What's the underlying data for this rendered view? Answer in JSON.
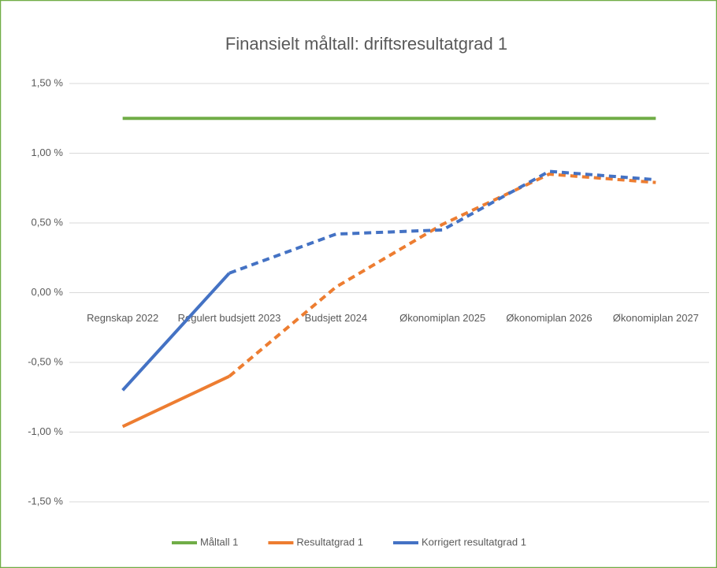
{
  "chart_data": {
    "type": "line",
    "title": "Finansielt måltall: driftsresultatgrad 1",
    "categories": [
      "Regnskap 2022",
      "Regulert budsjett 2023",
      "Budsjett 2024",
      "Økonomiplan 2025",
      "Økonomiplan 2026",
      "Økonomiplan 2027"
    ],
    "series": [
      {
        "name": "Måltall 1",
        "color": "#70ad47",
        "values": [
          1.25,
          1.25,
          1.25,
          1.25,
          1.25,
          1.25
        ]
      },
      {
        "name": "Resultatgrad 1",
        "color": "#ed7d31",
        "values": [
          -0.96,
          -0.6,
          0.04,
          0.49,
          0.85,
          0.79
        ],
        "dashed_from": 1
      },
      {
        "name": "Korrigert resultatgrad 1",
        "color": "#4472c4",
        "values": [
          -0.7,
          0.14,
          0.42,
          0.45,
          0.87,
          0.81
        ],
        "dashed_from": 1
      }
    ],
    "ylim": [
      -1.5,
      1.5
    ],
    "yticks": [
      {
        "value": -1.5,
        "label": "-1,50 %"
      },
      {
        "value": -1.0,
        "label": "-1,00 %"
      },
      {
        "value": -0.5,
        "label": "-0,50 %"
      },
      {
        "value": 0,
        "label": "0,00 %"
      },
      {
        "value": 0.5,
        "label": "0,50 %"
      },
      {
        "value": 1.0,
        "label": "1,00 %"
      },
      {
        "value": 1.5,
        "label": "1,50 %"
      }
    ],
    "grid": true,
    "legend": "bottom"
  }
}
